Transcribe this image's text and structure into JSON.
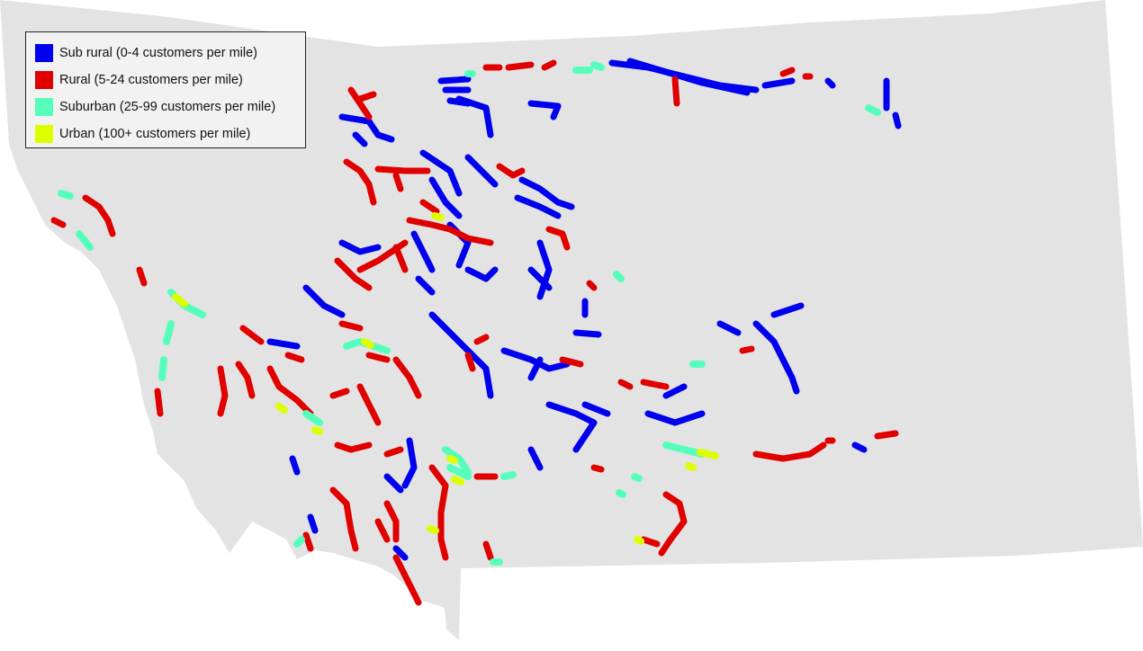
{
  "legend": {
    "items": [
      {
        "label": "Sub rural (0-4 customers per mile)",
        "color": "#0000ee"
      },
      {
        "label": "Rural (5-24 customers per mile)",
        "color": "#e00000"
      },
      {
        "label": "Suburban (25-99 customers per mile)",
        "color": "#55ffbb"
      },
      {
        "label": "Urban (100+ customers per mile)",
        "color": "#ddff00"
      }
    ]
  },
  "map": {
    "land_color": "#e3e3e3",
    "background_color": "#ffffff"
  }
}
